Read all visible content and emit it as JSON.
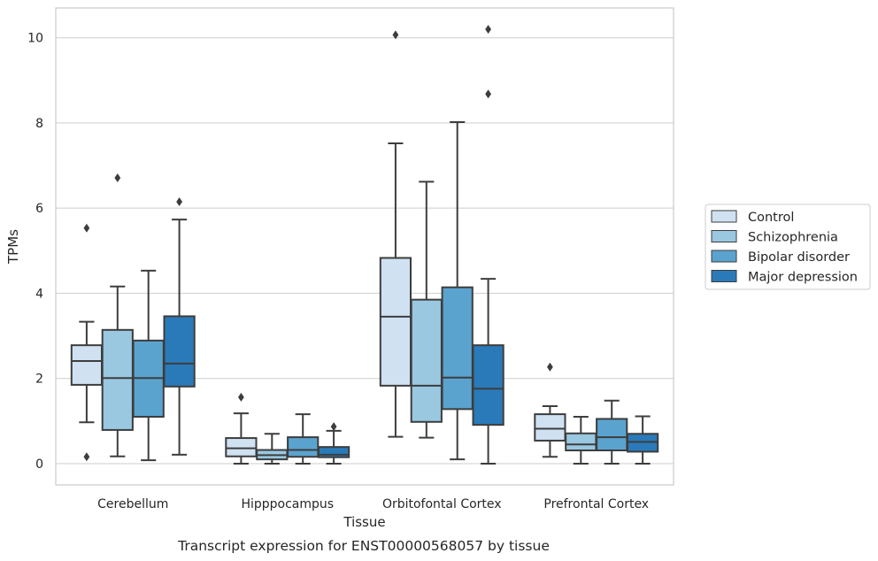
{
  "chart_data": {
    "type": "box",
    "title": "Transcript expression for ENST00000568057 by tissue",
    "xlabel": "Tissue",
    "ylabel": "TPMs",
    "ylim": [
      -0.5,
      10.7
    ],
    "yticks": [
      0,
      2,
      4,
      6,
      8,
      10
    ],
    "grid": "horizontal",
    "legend_position": "right",
    "categories": [
      "Cerebellum",
      "Hipppocampus",
      "Orbitofontal Cortex",
      "Prefrontal Cortex"
    ],
    "series": [
      {
        "name": "Control",
        "color": "#d0e1f2",
        "boxes": [
          {
            "whislo": 0.97,
            "q1": 1.85,
            "med": 2.41,
            "q3": 2.78,
            "whishi": 3.33,
            "fliers": [
              5.53,
              0.16
            ]
          },
          {
            "whislo": 0.0,
            "q1": 0.17,
            "med": 0.36,
            "q3": 0.6,
            "whishi": 1.18,
            "fliers": [
              1.56
            ]
          },
          {
            "whislo": 0.63,
            "q1": 1.83,
            "med": 3.45,
            "q3": 4.83,
            "whishi": 7.52,
            "fliers": [
              10.07
            ]
          },
          {
            "whislo": 0.16,
            "q1": 0.54,
            "med": 0.82,
            "q3": 1.16,
            "whishi": 1.35,
            "fliers": [
              2.27
            ]
          }
        ]
      },
      {
        "name": "Schizophrenia",
        "color": "#9ac8e0",
        "boxes": [
          {
            "whislo": 0.17,
            "q1": 0.79,
            "med": 2.01,
            "q3": 3.14,
            "whishi": 4.16,
            "fliers": [
              6.71
            ]
          },
          {
            "whislo": 0.0,
            "q1": 0.1,
            "med": 0.2,
            "q3": 0.32,
            "whishi": 0.7,
            "fliers": []
          },
          {
            "whislo": 0.61,
            "q1": 0.98,
            "med": 1.83,
            "q3": 3.85,
            "whishi": 6.62,
            "fliers": []
          },
          {
            "whislo": 0.0,
            "q1": 0.31,
            "med": 0.45,
            "q3": 0.71,
            "whishi": 1.1,
            "fliers": []
          }
        ]
      },
      {
        "name": "Bipolar disorder",
        "color": "#5ba3cf",
        "boxes": [
          {
            "whislo": 0.08,
            "q1": 1.1,
            "med": 2.01,
            "q3": 2.89,
            "whishi": 4.53,
            "fliers": []
          },
          {
            "whislo": 0.0,
            "q1": 0.16,
            "med": 0.32,
            "q3": 0.62,
            "whishi": 1.16,
            "fliers": []
          },
          {
            "whislo": 0.1,
            "q1": 1.28,
            "med": 2.02,
            "q3": 4.14,
            "whishi": 8.02,
            "fliers": []
          },
          {
            "whislo": 0.0,
            "q1": 0.31,
            "med": 0.62,
            "q3": 1.05,
            "whishi": 1.48,
            "fliers": []
          }
        ]
      },
      {
        "name": "Major depression",
        "color": "#2a7ab9",
        "boxes": [
          {
            "whislo": 0.21,
            "q1": 1.81,
            "med": 2.35,
            "q3": 3.46,
            "whishi": 5.73,
            "fliers": [
              6.15
            ]
          },
          {
            "whislo": 0.0,
            "q1": 0.15,
            "med": 0.21,
            "q3": 0.39,
            "whishi": 0.77,
            "fliers": [
              0.87
            ]
          },
          {
            "whislo": 0.0,
            "q1": 0.91,
            "med": 1.76,
            "q3": 2.78,
            "whishi": 4.34,
            "fliers": [
              8.68,
              10.2
            ]
          },
          {
            "whislo": 0.0,
            "q1": 0.28,
            "med": 0.51,
            "q3": 0.7,
            "whishi": 1.11,
            "fliers": []
          }
        ]
      }
    ]
  }
}
